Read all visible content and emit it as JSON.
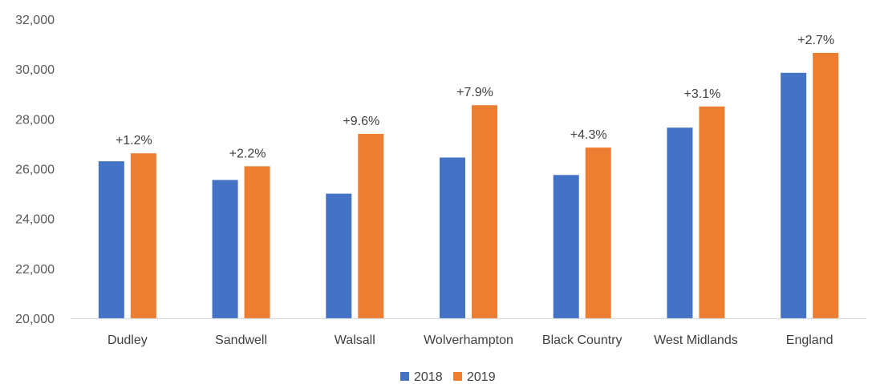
{
  "chart_data": {
    "type": "bar",
    "categories": [
      "Dudley",
      "Sandwell",
      "Walsall",
      "Wolverhampton",
      "Black Country",
      "West Midlands",
      "England"
    ],
    "series": [
      {
        "name": "2018",
        "color": "#4472C4",
        "values": [
          26300,
          25550,
          25000,
          26450,
          25750,
          27650,
          29850
        ]
      },
      {
        "name": "2019",
        "color": "#ED7D31",
        "values": [
          26620,
          26100,
          27400,
          28550,
          26850,
          28500,
          30650
        ]
      }
    ],
    "annotations": [
      "+1.2%",
      "+2.2%",
      "+9.6%",
      "+7.9%",
      "+4.3%",
      "+3.1%",
      "+2.7%"
    ],
    "yticks": [
      "20,000",
      "22,000",
      "24,000",
      "26,000",
      "28,000",
      "30,000",
      "32,000"
    ],
    "ylim": [
      20000,
      32000
    ],
    "title": "",
    "xlabel": "",
    "ylabel": "",
    "grid": false,
    "legend": "bottom-center"
  }
}
